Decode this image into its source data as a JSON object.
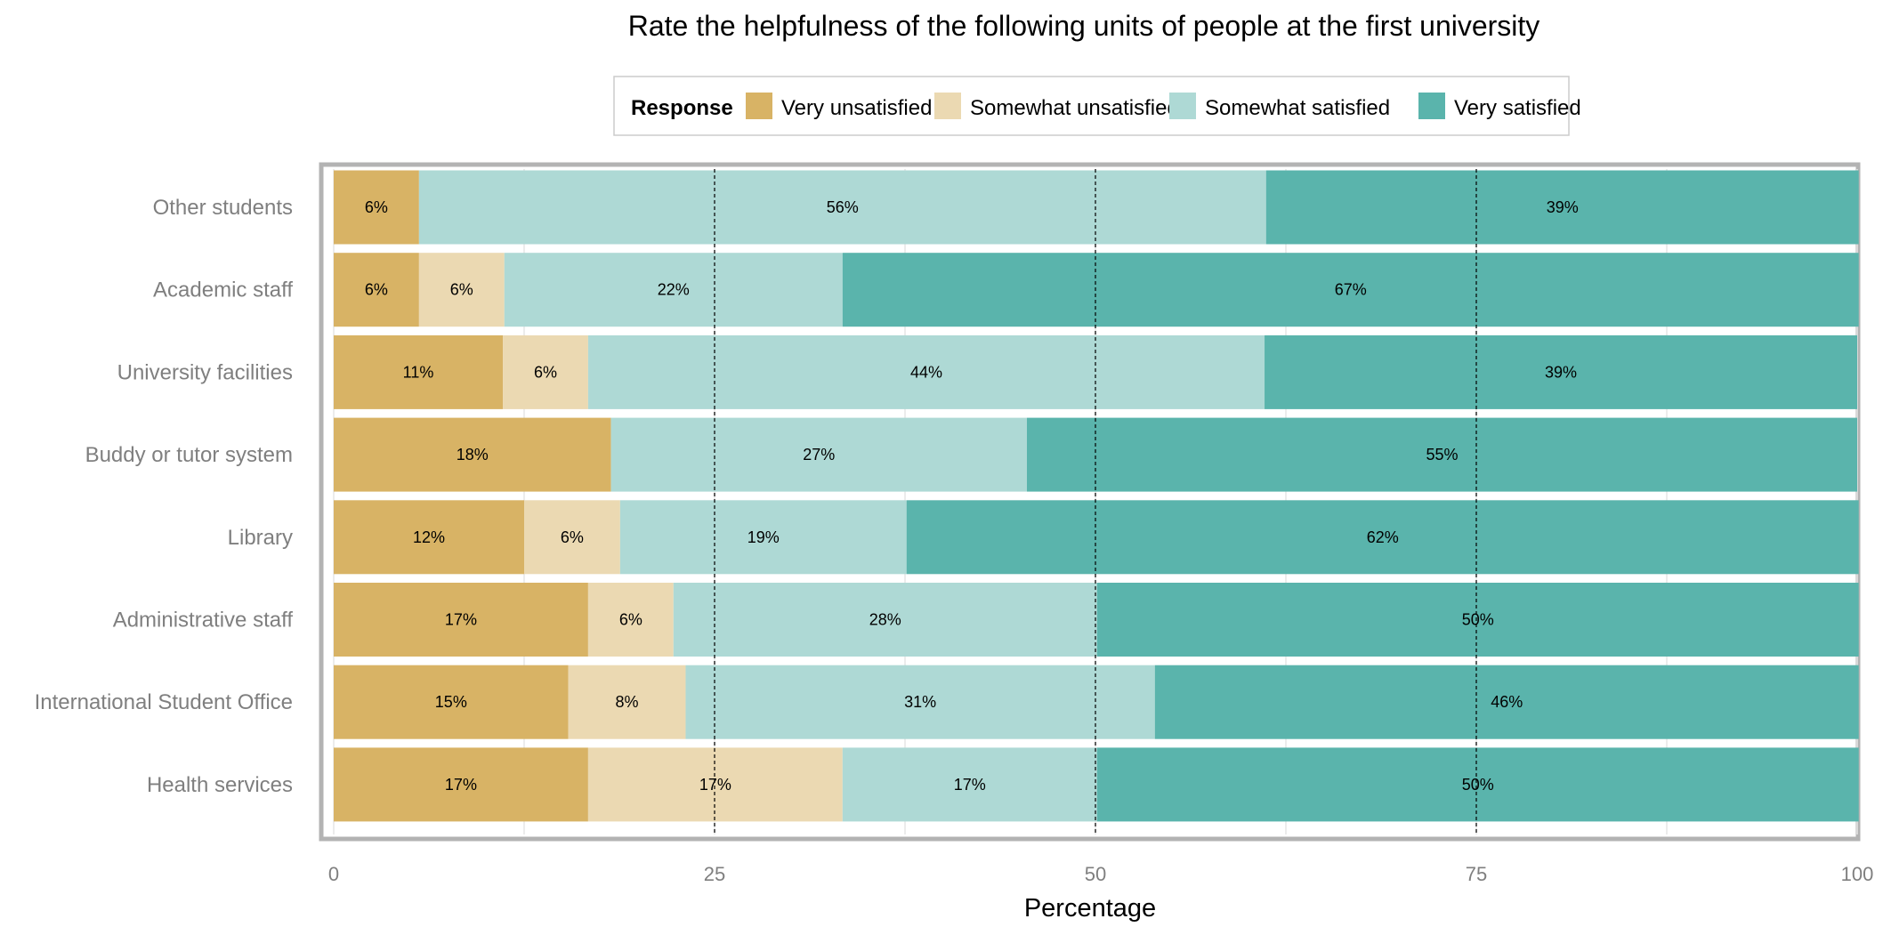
{
  "chart_data": {
    "type": "bar",
    "orientation": "horizontal",
    "stacked": true,
    "title": "Rate the helpfulness of the following units of people at the first university",
    "xlabel": "Percentage",
    "ylabel": "",
    "xlim": [
      0,
      100
    ],
    "xticks": [
      "0",
      "25",
      "50",
      "75",
      "100"
    ],
    "legend_title": "Response",
    "legend_position": "top",
    "categories": [
      "Other students",
      "Academic staff",
      "University facilities",
      "Buddy or tutor system",
      "Library",
      "Administrative staff",
      "International Student Office",
      "Health services"
    ],
    "series": [
      {
        "name": "Very unsatisfied",
        "color": "#D8B365",
        "values": [
          5.6,
          5.6,
          11.1,
          18.2,
          12.5,
          16.7,
          15.4,
          16.7
        ],
        "labels": [
          "6%",
          "6%",
          "11%",
          "18%",
          "12%",
          "17%",
          "15%",
          "17%"
        ]
      },
      {
        "name": "Somewhat unsatisfied",
        "color": "#EBD9B2",
        "values": [
          0,
          5.6,
          5.6,
          0,
          6.3,
          5.6,
          7.7,
          16.7
        ],
        "labels": [
          "",
          "6%",
          "6%",
          "",
          "6%",
          "6%",
          "8%",
          "17%"
        ]
      },
      {
        "name": "Somewhat satisfied",
        "color": "#AED9D5",
        "values": [
          55.6,
          22.2,
          44.4,
          27.3,
          18.8,
          27.8,
          30.8,
          16.7
        ],
        "labels": [
          "56%",
          "22%",
          "44%",
          "27%",
          "19%",
          "28%",
          "31%",
          "17%"
        ]
      },
      {
        "name": "Very satisfied",
        "color": "#5AB4AC",
        "values": [
          38.9,
          66.7,
          38.9,
          54.5,
          62.5,
          50.0,
          46.2,
          50.0
        ],
        "labels": [
          "39%",
          "67%",
          "39%",
          "55%",
          "62%",
          "50%",
          "46%",
          "50%"
        ]
      }
    ],
    "reference_lines": [
      25,
      50,
      75
    ],
    "grid": true
  }
}
